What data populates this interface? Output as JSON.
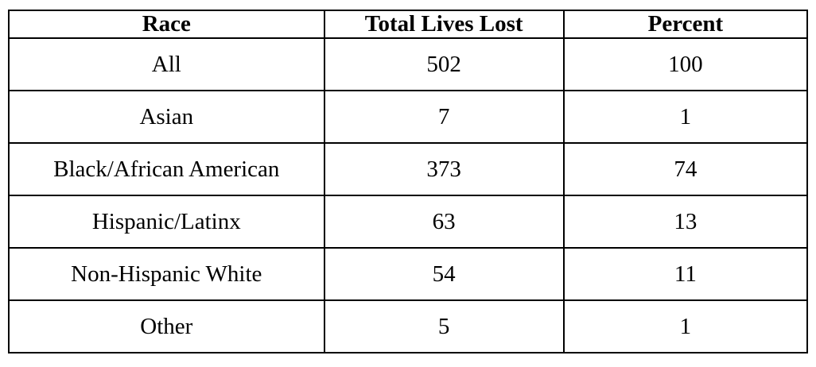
{
  "chart_data": {
    "type": "table",
    "columns": [
      "Race",
      "Total Lives Lost",
      "Percent"
    ],
    "rows": [
      [
        "All",
        "502",
        "100"
      ],
      [
        "Asian",
        "7",
        "1"
      ],
      [
        "Black/African American",
        "373",
        "74"
      ],
      [
        "Hispanic/Latinx",
        "63",
        "13"
      ],
      [
        "Non-Hispanic White",
        "54",
        "11"
      ],
      [
        "Other",
        "5",
        "1"
      ]
    ],
    "border_color": "#000000",
    "text_color": "#000000",
    "background_color": "#ffffff",
    "grid": "on",
    "header_style": "bold"
  }
}
